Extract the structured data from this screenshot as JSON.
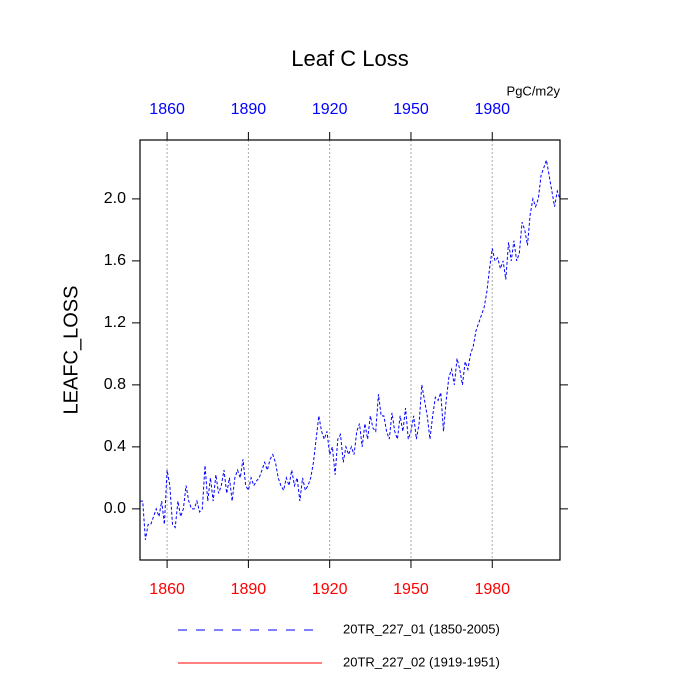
{
  "chart_data": {
    "type": "line",
    "title": "Leaf C Loss",
    "units": "PgC/m2y",
    "ylabel": "LEAFC_LOSS",
    "x": [
      1850,
      1851,
      1852,
      1853,
      1854,
      1855,
      1856,
      1857,
      1858,
      1859,
      1860,
      1861,
      1862,
      1863,
      1864,
      1865,
      1866,
      1867,
      1868,
      1869,
      1870,
      1871,
      1872,
      1873,
      1874,
      1875,
      1876,
      1877,
      1878,
      1879,
      1880,
      1881,
      1882,
      1883,
      1884,
      1885,
      1886,
      1887,
      1888,
      1889,
      1890,
      1891,
      1892,
      1893,
      1894,
      1895,
      1896,
      1897,
      1898,
      1899,
      1900,
      1901,
      1902,
      1903,
      1904,
      1905,
      1906,
      1907,
      1908,
      1909,
      1910,
      1911,
      1912,
      1913,
      1914,
      1915,
      1916,
      1917,
      1918,
      1919,
      1920,
      1921,
      1922,
      1923,
      1924,
      1925,
      1926,
      1927,
      1928,
      1929,
      1930,
      1931,
      1932,
      1933,
      1934,
      1935,
      1936,
      1937,
      1938,
      1939,
      1940,
      1941,
      1942,
      1943,
      1944,
      1945,
      1946,
      1947,
      1948,
      1949,
      1950,
      1951,
      1952,
      1953,
      1954,
      1955,
      1956,
      1957,
      1958,
      1959,
      1960,
      1961,
      1962,
      1963,
      1964,
      1965,
      1966,
      1967,
      1968,
      1969,
      1970,
      1971,
      1972,
      1973,
      1974,
      1975,
      1976,
      1977,
      1978,
      1979,
      1980,
      1981,
      1982,
      1983,
      1984,
      1985,
      1986,
      1987,
      1988,
      1989,
      1990,
      1991,
      1992,
      1993,
      1994,
      1995,
      1996,
      1997,
      1998,
      1999,
      2000,
      2001,
      2002,
      2003,
      2004,
      2005
    ],
    "series": [
      {
        "name": "20TR_227_01 (1850-2005)",
        "color": "#0000ff",
        "dash": true,
        "values": [
          0.05,
          0.05,
          -0.2,
          -0.1,
          -0.1,
          -0.05,
          0.0,
          -0.05,
          0.05,
          -0.1,
          0.25,
          0.15,
          -0.1,
          -0.12,
          0.05,
          -0.05,
          0.0,
          0.15,
          0.05,
          0.0,
          0.0,
          0.05,
          -0.02,
          0.0,
          0.28,
          0.05,
          0.2,
          0.05,
          0.22,
          0.1,
          0.15,
          0.25,
          0.1,
          0.2,
          0.05,
          0.2,
          0.25,
          0.2,
          0.32,
          0.15,
          0.12,
          0.2,
          0.15,
          0.18,
          0.2,
          0.25,
          0.3,
          0.25,
          0.32,
          0.35,
          0.3,
          0.2,
          0.15,
          0.12,
          0.2,
          0.15,
          0.25,
          0.15,
          0.2,
          0.05,
          0.2,
          0.12,
          0.15,
          0.2,
          0.3,
          0.45,
          0.6,
          0.5,
          0.45,
          0.5,
          0.35,
          0.4,
          0.22,
          0.45,
          0.48,
          0.3,
          0.4,
          0.35,
          0.4,
          0.35,
          0.5,
          0.55,
          0.4,
          0.55,
          0.45,
          0.6,
          0.52,
          0.5,
          0.74,
          0.6,
          0.6,
          0.5,
          0.45,
          0.62,
          0.5,
          0.45,
          0.6,
          0.5,
          0.65,
          0.45,
          0.5,
          0.6,
          0.45,
          0.55,
          0.8,
          0.7,
          0.6,
          0.45,
          0.6,
          0.72,
          0.7,
          0.75,
          0.5,
          0.7,
          0.85,
          0.9,
          0.8,
          0.97,
          0.9,
          0.8,
          0.95,
          0.9,
          1.0,
          1.05,
          1.15,
          1.2,
          1.25,
          1.3,
          1.4,
          1.55,
          1.68,
          1.6,
          1.62,
          1.55,
          1.6,
          1.48,
          1.72,
          1.6,
          1.73,
          1.6,
          1.65,
          1.85,
          1.8,
          1.7,
          1.9,
          2.0,
          1.95,
          2.0,
          2.15,
          2.2,
          2.25,
          2.15,
          2.05,
          1.95,
          2.05,
          2.0
        ]
      },
      {
        "name": "20TR_227_02 (1919-1951)",
        "color": "#ff0000",
        "dash": false,
        "values": [
          null,
          null,
          null,
          null,
          null,
          null,
          null,
          null,
          null,
          null,
          null,
          null,
          null,
          null,
          null,
          null,
          null,
          null,
          null,
          null,
          null,
          null,
          null,
          null,
          null,
          null,
          null,
          null,
          null,
          null,
          null,
          null,
          null,
          null,
          null,
          null,
          null,
          null,
          null,
          null,
          null,
          null,
          null,
          null,
          null,
          null,
          null,
          null,
          null,
          null,
          null,
          null,
          null,
          null,
          null,
          null,
          null,
          null,
          null,
          null,
          null,
          null,
          null,
          null,
          null,
          null,
          null,
          null,
          null,
          null,
          null,
          null,
          null,
          null,
          null,
          null,
          null,
          null,
          null,
          null,
          null,
          null,
          null,
          null,
          null,
          null,
          null,
          null,
          null,
          null,
          null,
          null,
          null,
          null,
          null,
          null,
          null,
          null,
          null,
          null,
          null,
          null,
          null,
          null,
          null,
          null,
          null,
          null,
          null,
          null,
          null,
          null,
          null,
          null,
          null,
          null,
          null,
          null,
          null,
          null,
          null,
          null,
          null,
          null,
          null,
          null,
          null,
          null,
          null,
          null,
          null,
          null,
          null,
          null,
          null,
          null,
          null,
          null,
          null,
          null,
          null,
          null,
          null,
          null,
          null,
          null,
          null,
          null,
          null,
          null,
          null,
          null,
          null,
          null,
          null,
          null
        ]
      }
    ],
    "xlim": [
      1850,
      2005
    ],
    "ylim": [
      -0.33,
      2.38
    ],
    "xticks": [
      1860,
      1890,
      1920,
      1950,
      1980
    ],
    "yticks": [
      {
        "value": 0,
        "label": "0.0"
      },
      0.4,
      0.8,
      1.2,
      1.6,
      {
        "value": 2,
        "label": "2.0"
      }
    ],
    "xtick_label_colors": {
      "top": "#0000ff",
      "bottom": "#ff0000"
    },
    "grid": "x"
  }
}
